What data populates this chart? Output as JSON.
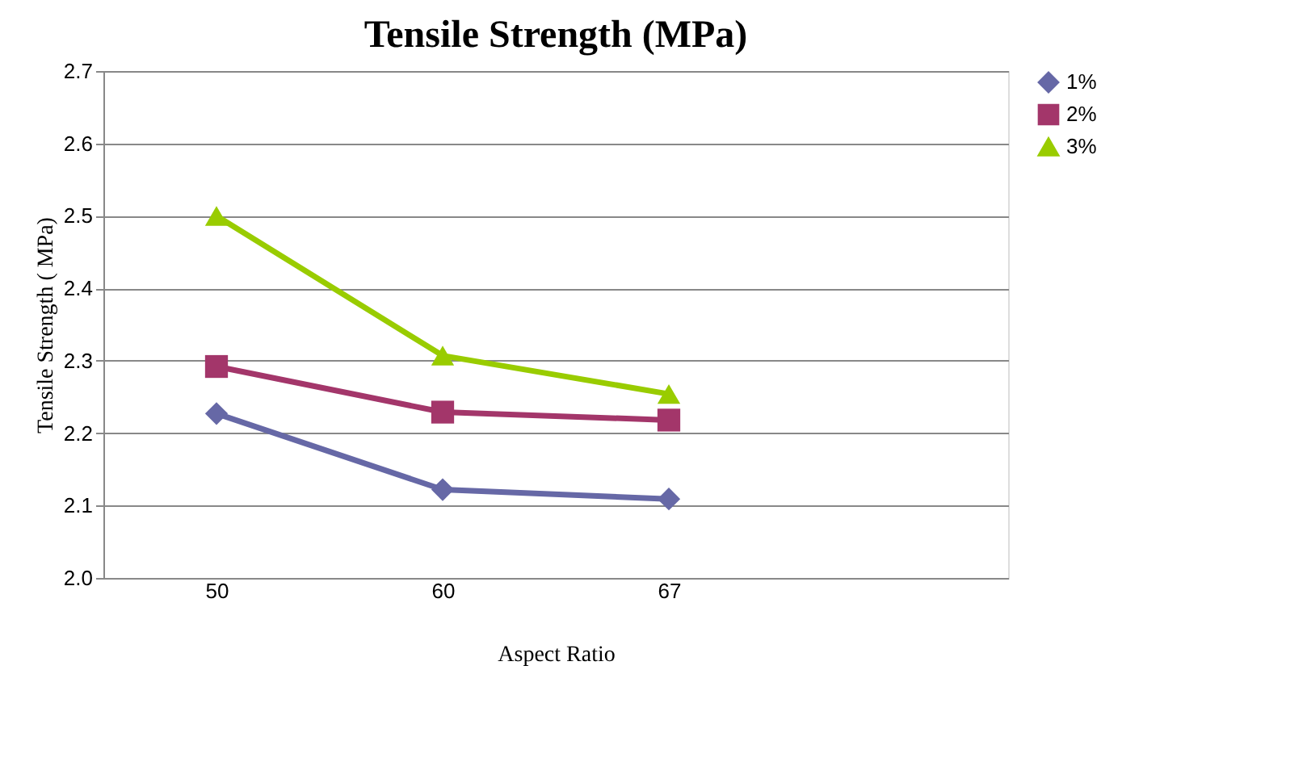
{
  "chart_data": {
    "type": "line",
    "title": "Tensile Strength (MPa)",
    "xlabel": "Aspect Ratio",
    "ylabel": "Tensile  Strength ( MPa)",
    "categories": [
      "50",
      "60",
      "67",
      null
    ],
    "series": [
      {
        "name": "1%",
        "color": "#6668a6",
        "marker": "diamond",
        "values": [
          2.227,
          2.122,
          2.109,
          null
        ]
      },
      {
        "name": "2%",
        "color": "#a3366a",
        "marker": "square",
        "values": [
          2.292,
          2.229,
          2.218,
          null
        ]
      },
      {
        "name": "3%",
        "color": "#99cc00",
        "marker": "triangle",
        "values": [
          2.5,
          2.307,
          2.254,
          null
        ]
      }
    ],
    "ylim": [
      2.0,
      2.7
    ],
    "yticks": [
      {
        "value": 2.0,
        "label": "2.0"
      },
      2.1,
      2.2,
      2.3,
      2.4,
      2.5,
      2.6,
      2.7
    ],
    "grid": "y",
    "legend": "right",
    "line_style": "solid"
  }
}
